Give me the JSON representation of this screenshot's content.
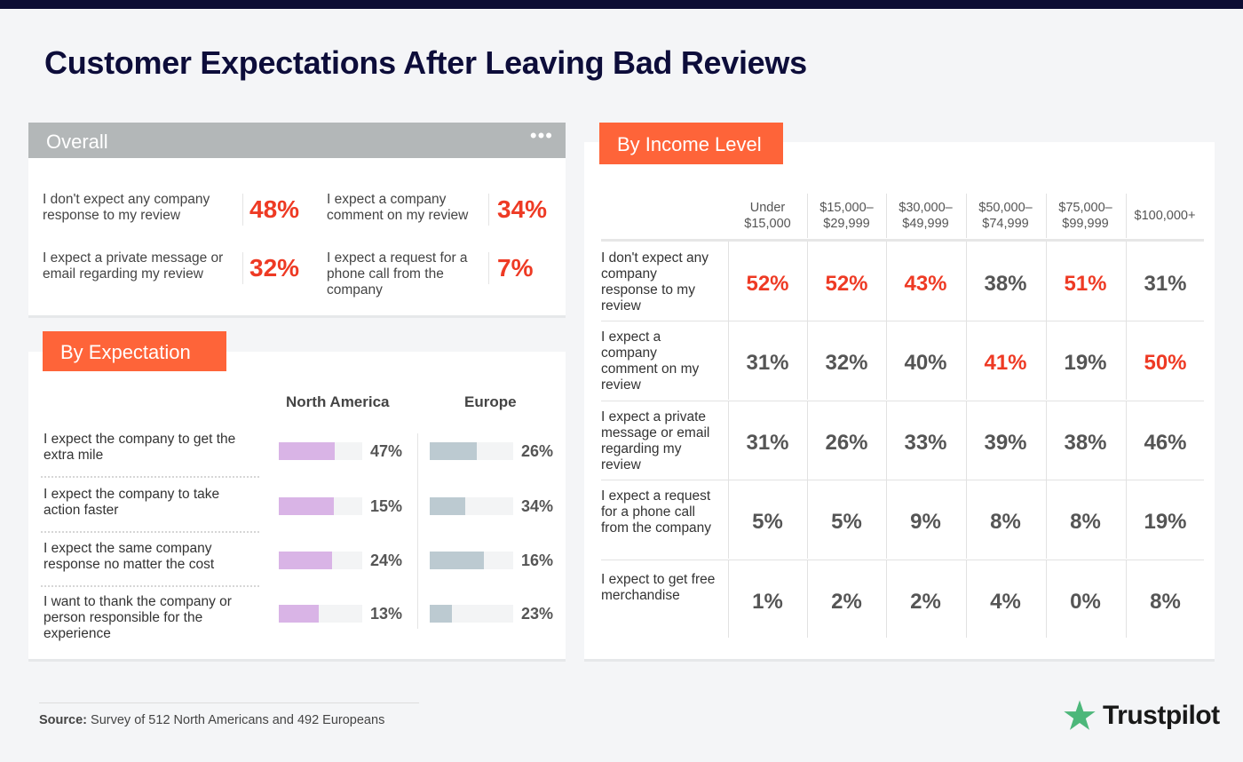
{
  "title": "Customer Expectations After Leaving Bad Reviews",
  "overall": {
    "label": "Overall",
    "menu_icon": "more-dots-icon",
    "items": [
      {
        "text": "I don't expect any company response to my review",
        "value": "48%"
      },
      {
        "text": "I expect a company comment on my review",
        "value": "34%"
      },
      {
        "text": "I expect a private message or email regarding my review",
        "value": "32%"
      },
      {
        "text": "I expect a request for a phone call from the company",
        "value": "7%"
      }
    ]
  },
  "by_expectation": {
    "label": "By Expectation",
    "columns": [
      "North America",
      "Europe"
    ]
  },
  "by_income": {
    "label": "By Income Level"
  },
  "colors": {
    "accent": "#fe6439",
    "highlight": "#ee3a24",
    "north_america_bar": "#d9b4e6",
    "europe_bar": "#bccad1",
    "header_gray": "#b3b7b8"
  },
  "chart_data": [
    {
      "type": "bar",
      "title": "By Expectation",
      "categories": [
        "I expect the company to get the extra mile",
        "I expect the company to take action faster",
        "I expect the same company response no matter the cost",
        "I want to thank the company or person responsible for the experience"
      ],
      "series": [
        {
          "name": "North America",
          "labels": [
            "47%",
            "15%",
            "24%",
            "13%"
          ],
          "values": [
            47,
            15,
            24,
            13
          ],
          "bar_fill": [
            0.67,
            0.66,
            0.64,
            0.48
          ]
        },
        {
          "name": "Europe",
          "labels": [
            "26%",
            "34%",
            "16%",
            "23%"
          ],
          "values": [
            26,
            34,
            16,
            23
          ],
          "bar_fill": [
            0.56,
            0.43,
            0.65,
            0.27
          ]
        }
      ]
    },
    {
      "type": "table",
      "title": "By Income Level",
      "columns": [
        "Under $15,000",
        "$15,000–$29,999",
        "$30,000–$49,999",
        "$50,000–$74,999",
        "$75,000–$99,999",
        "$100,000+"
      ],
      "rows": [
        {
          "label": "I don't expect any company response to my review",
          "values": [
            "52%",
            "52%",
            "43%",
            "38%",
            "51%",
            "31%"
          ],
          "highlight": [
            true,
            true,
            true,
            false,
            true,
            false
          ]
        },
        {
          "label": "I expect a company comment on my review",
          "values": [
            "31%",
            "32%",
            "40%",
            "41%",
            "19%",
            "50%"
          ],
          "highlight": [
            false,
            false,
            false,
            true,
            false,
            true
          ]
        },
        {
          "label": "I expect a private message or email regarding my review",
          "values": [
            "31%",
            "26%",
            "33%",
            "39%",
            "38%",
            "46%"
          ],
          "highlight": [
            false,
            false,
            false,
            false,
            false,
            false
          ]
        },
        {
          "label": "I expect a request for a phone call from the company",
          "values": [
            "5%",
            "5%",
            "9%",
            "8%",
            "8%",
            "19%"
          ],
          "highlight": [
            false,
            false,
            false,
            false,
            false,
            false
          ]
        },
        {
          "label": "I expect to get free merchandise",
          "values": [
            "1%",
            "2%",
            "2%",
            "4%",
            "0%",
            "8%"
          ],
          "highlight": [
            false,
            false,
            false,
            false,
            false,
            false
          ]
        }
      ]
    }
  ],
  "source": {
    "label": "Source:",
    "text": "Survey of 512 North Americans and 492 Europeans"
  },
  "logo": {
    "text": "Trustpilot",
    "icon": "star-icon",
    "color": "#4cb77a"
  }
}
